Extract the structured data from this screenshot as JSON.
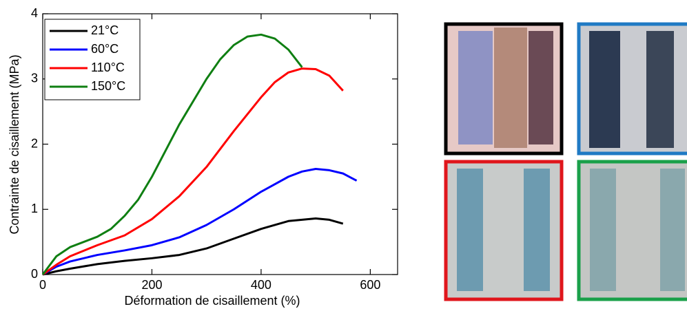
{
  "chart_data": {
    "type": "line",
    "xlabel": "Déformation de cisaillement (%)",
    "ylabel": "Contrainte de cisaillement (MPa)",
    "xlim": [
      0,
      650
    ],
    "ylim": [
      0,
      4
    ],
    "xticks": [
      0,
      200,
      400,
      600
    ],
    "yticks": [
      0,
      1,
      2,
      3,
      4
    ],
    "legend": "upper left",
    "series": [
      {
        "name": "21°C",
        "color": "#000000",
        "x": [
          0,
          25,
          50,
          100,
          150,
          200,
          250,
          300,
          350,
          400,
          450,
          500,
          525,
          550
        ],
        "values": [
          0,
          0.05,
          0.09,
          0.16,
          0.21,
          0.25,
          0.3,
          0.4,
          0.55,
          0.7,
          0.82,
          0.86,
          0.84,
          0.78
        ]
      },
      {
        "name": "60°C",
        "color": "#0000ff",
        "x": [
          0,
          25,
          50,
          100,
          150,
          200,
          250,
          300,
          350,
          400,
          450,
          475,
          500,
          525,
          550,
          575
        ],
        "values": [
          0,
          0.12,
          0.2,
          0.3,
          0.37,
          0.45,
          0.57,
          0.76,
          1.0,
          1.27,
          1.5,
          1.58,
          1.62,
          1.6,
          1.55,
          1.44
        ]
      },
      {
        "name": "110°C",
        "color": "#ff0000",
        "x": [
          0,
          25,
          50,
          100,
          150,
          200,
          250,
          300,
          350,
          400,
          425,
          450,
          475,
          500,
          525,
          550
        ],
        "values": [
          0,
          0.15,
          0.28,
          0.45,
          0.6,
          0.85,
          1.2,
          1.65,
          2.2,
          2.72,
          2.95,
          3.1,
          3.16,
          3.15,
          3.05,
          2.82
        ]
      },
      {
        "name": "150°C",
        "color": "#0f7f12",
        "x": [
          0,
          25,
          50,
          100,
          125,
          150,
          175,
          200,
          250,
          300,
          325,
          350,
          375,
          400,
          425,
          450,
          475
        ],
        "values": [
          0,
          0.28,
          0.42,
          0.58,
          0.7,
          0.9,
          1.15,
          1.5,
          2.3,
          3.0,
          3.3,
          3.52,
          3.65,
          3.68,
          3.62,
          3.45,
          3.18
        ]
      }
    ]
  }
}
